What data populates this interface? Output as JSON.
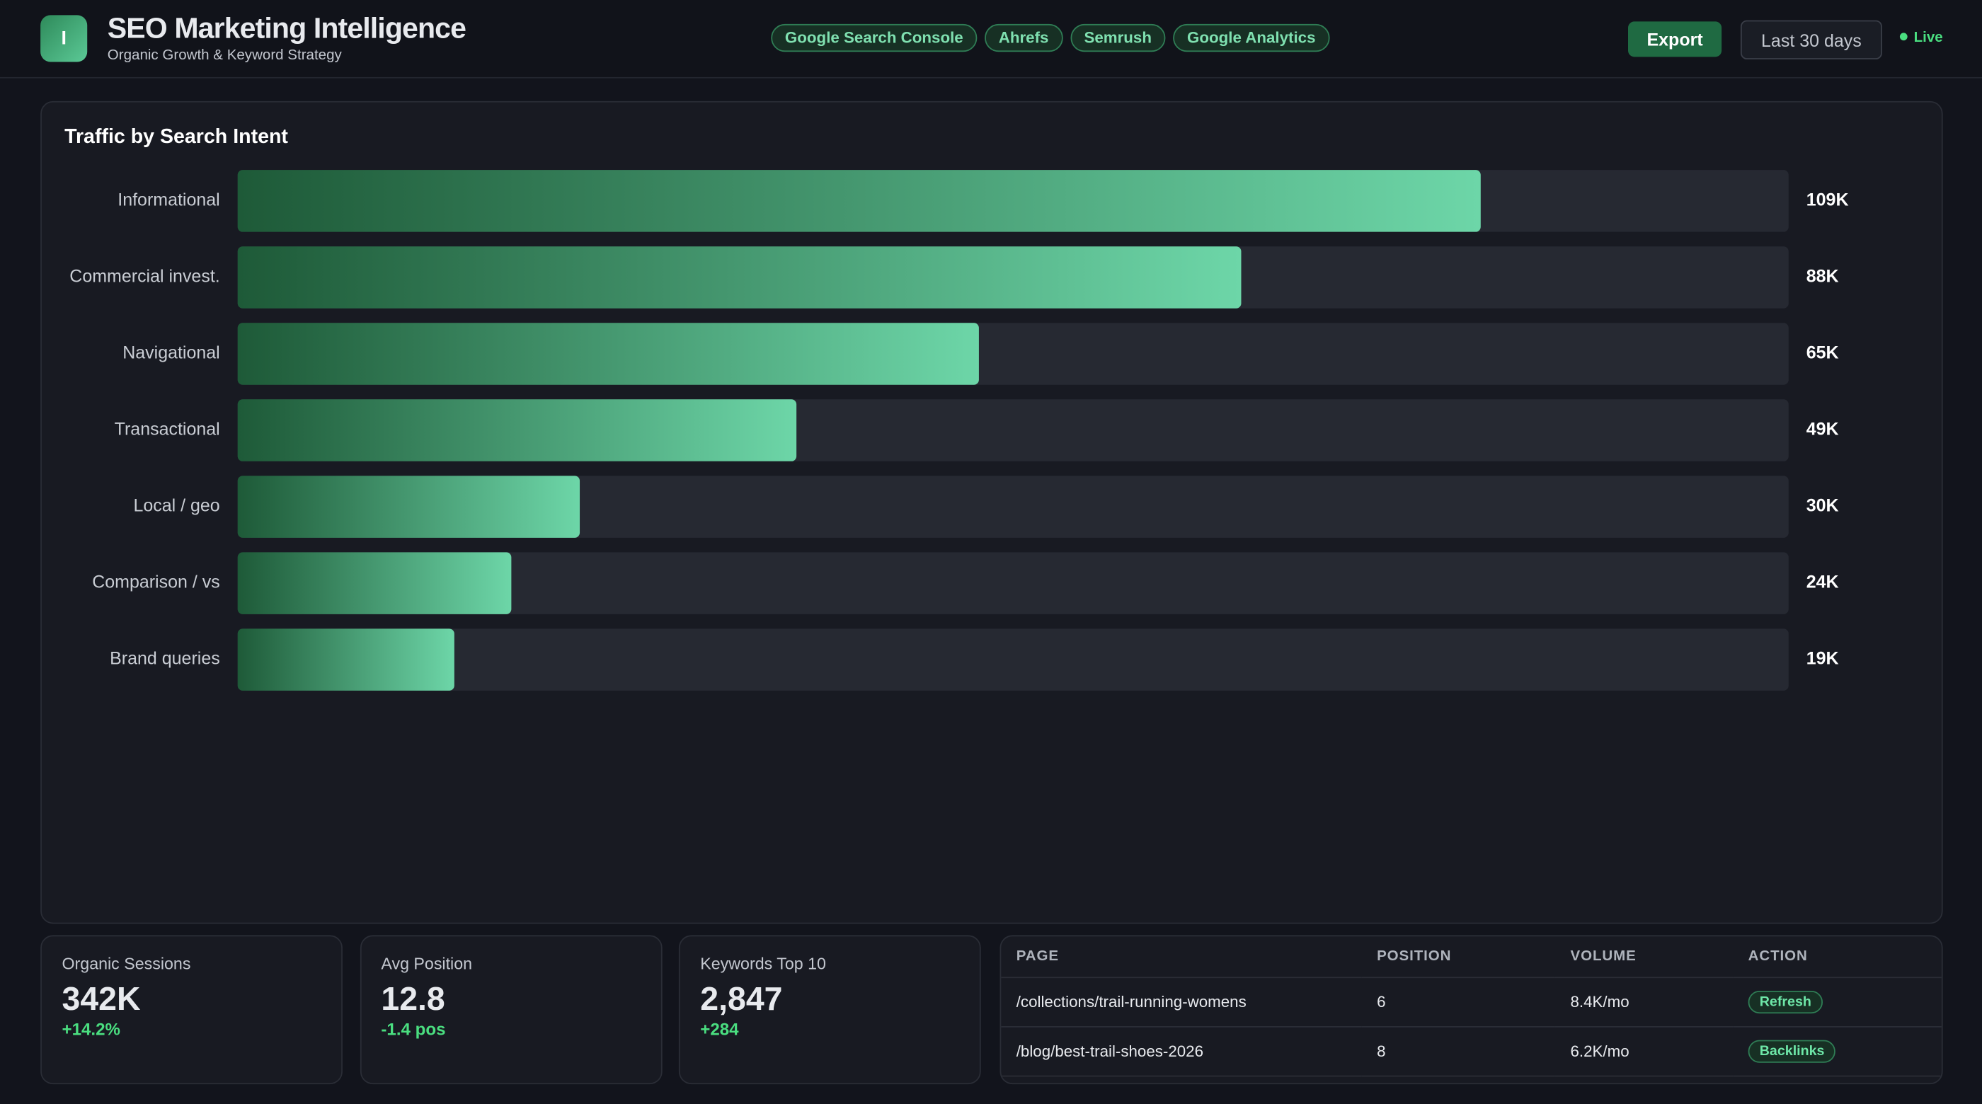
{
  "header": {
    "logo": "I",
    "title": "SEO Marketing Intelligence",
    "subtitle": "Organic Growth & Keyword Strategy",
    "sources": [
      "Google Search Console",
      "Ahrefs",
      "Semrush",
      "Google Analytics"
    ],
    "export": "Export",
    "range": "Last 30 days",
    "status": "Live"
  },
  "chart_data": {
    "type": "hbar",
    "title": "Traffic by Search Intent",
    "categories": [
      "Informational",
      "Commercial invest.",
      "Navigational",
      "Transactional",
      "Local / geo",
      "Comparison / vs",
      "Brand queries"
    ],
    "values": [
      109000,
      88000,
      65000,
      49000,
      30000,
      24000,
      19000
    ],
    "value_labels": [
      "109K",
      "88K",
      "65K",
      "49K",
      "30K",
      "24K",
      "19K"
    ],
    "xlim": [
      0,
      136000
    ],
    "color": "#6dd6a8"
  },
  "kpis": [
    {
      "label": "Organic Sessions",
      "value": "342K",
      "delta": "+14.2%"
    },
    {
      "label": "Avg Position",
      "value": "12.8",
      "delta": "-1.4 pos"
    },
    {
      "label": "Keywords Top 10",
      "value": "2,847",
      "delta": "+284"
    }
  ],
  "table": {
    "columns": [
      "PAGE",
      "POSITION",
      "VOLUME",
      "ACTION"
    ],
    "rows": [
      [
        "/collections/trail-running-womens",
        "6",
        "8.4K/mo",
        "Refresh"
      ],
      [
        "/blog/best-trail-shoes-2026",
        "8",
        "6.2K/mo",
        "Backlinks"
      ]
    ]
  }
}
